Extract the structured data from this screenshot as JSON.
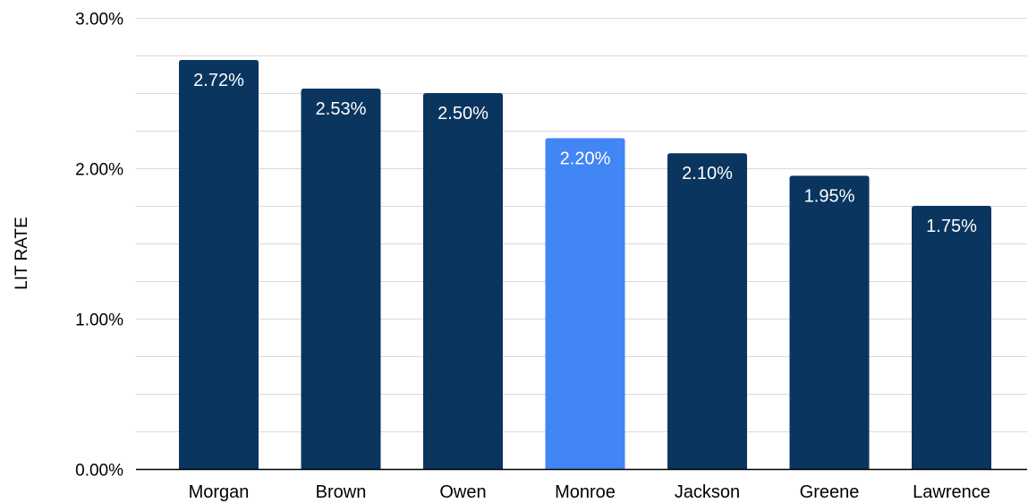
{
  "chart_data": {
    "type": "bar",
    "title": "",
    "xlabel": "",
    "ylabel": "LIT RATE",
    "categories": [
      "Morgan",
      "Brown",
      "Owen",
      "Monroe",
      "Jackson",
      "Greene",
      "Lawrence"
    ],
    "values": [
      2.72,
      2.53,
      2.5,
      2.2,
      2.1,
      1.95,
      1.75
    ],
    "value_labels": [
      "2.72%",
      "2.53%",
      "2.50%",
      "2.20%",
      "2.10%",
      "1.95%",
      "1.75%"
    ],
    "highlighted_category": "Monroe",
    "ylim": [
      0,
      3
    ],
    "yticks": [
      0,
      1,
      2,
      3
    ],
    "ytick_labels": [
      "0.00%",
      "1.00%",
      "2.00%",
      "3.00%"
    ],
    "minor_gridlines_per_major": 3,
    "grid": true,
    "legend": "none",
    "colors": {
      "bar": "#0a355f",
      "highlight": "#4285f4",
      "gridline": "#d9d9d9",
      "axis": "#000000",
      "label_text": "#ffffff"
    }
  }
}
